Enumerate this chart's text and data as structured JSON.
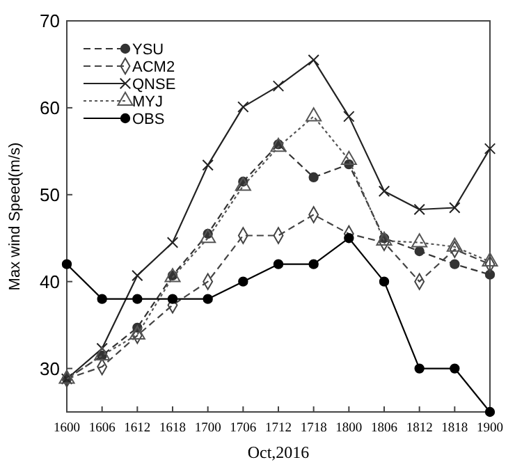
{
  "chart_data": {
    "type": "line",
    "xlabel": "Oct,2016",
    "ylabel": "Max wind Speed(m/s)",
    "categories": [
      "1600",
      "1606",
      "1612",
      "1618",
      "1700",
      "1706",
      "1712",
      "1718",
      "1800",
      "1806",
      "1812",
      "1818",
      "1900"
    ],
    "ylim": [
      25,
      70
    ],
    "yticks": [
      30,
      40,
      50,
      60,
      70
    ],
    "grid": false,
    "legend": "top left",
    "series": [
      {
        "name": "YSU",
        "color": "#333333",
        "line_style": "dashed",
        "marker": "circle",
        "values": [
          28.8,
          31.5,
          34.7,
          40.7,
          45.5,
          51.5,
          55.8,
          52,
          53.5,
          45,
          43.5,
          42,
          40.8
        ]
      },
      {
        "name": "ACM2",
        "color": "#444444",
        "line_style": "dashed",
        "marker": "diamond",
        "values": [
          28.8,
          30.2,
          33.8,
          37.3,
          40,
          45.3,
          45.3,
          47.7,
          45.5,
          44.5,
          40,
          43.7,
          42
        ]
      },
      {
        "name": "QNSE",
        "color": "#222222",
        "line_style": "solid",
        "marker": "cross",
        "values": [
          28.8,
          32.3,
          40.7,
          44.5,
          53.4,
          60.1,
          62.5,
          65.5,
          59,
          50.4,
          48.3,
          48.5,
          55.3
        ]
      },
      {
        "name": "MYJ",
        "color": "#555555",
        "line_style": "dotted",
        "marker": "triangle",
        "values": [
          28.8,
          31.5,
          33.9,
          40.5,
          45,
          51,
          55.5,
          59,
          54,
          44.7,
          44.5,
          44,
          42.3
        ]
      },
      {
        "name": "OBS",
        "color": "#000000",
        "line_style": "solid",
        "marker": "circle",
        "values": [
          42,
          38,
          38,
          38,
          38,
          40,
          42,
          42,
          45,
          40,
          30,
          30,
          25
        ]
      }
    ]
  }
}
